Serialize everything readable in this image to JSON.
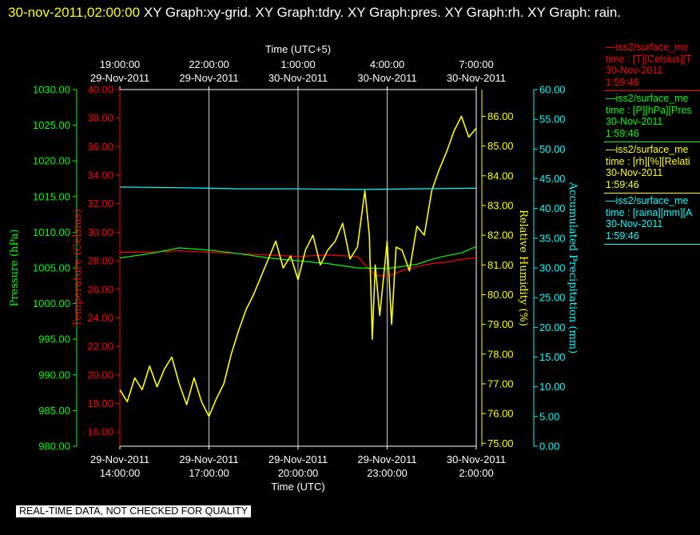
{
  "header": {
    "timestamp": "30-nov-2011,02:00:00",
    "title": " XY Graph:xy-grid.  XY Graph:tdry.  XY Graph:pres.  XY Graph:rh.  XY Graph: rain."
  },
  "footer": {
    "notice": "REAL-TIME DATA, NOT CHECKED FOR QUALITY"
  },
  "legend": [
    {
      "name": "—iss2/surface_me",
      "var": "time : [T][Celsius][T",
      "date": "30-Nov-2011",
      "time": "1:59:46",
      "color": "#ff0000"
    },
    {
      "name": "—iss2/surface_me",
      "var": "time : [P][hPa][Pres",
      "date": "30-Nov-2011",
      "time": "1:59:46",
      "color": "#00ff00"
    },
    {
      "name": "—iss2/surface_me",
      "var": "time : [rh][%][Relati",
      "date": "30-Nov-2011",
      "time": "1:59:46",
      "color": "#ffff00"
    },
    {
      "name": "—iss2/surface_me",
      "var": "time : [raina][mm][A",
      "date": "30-Nov-2011",
      "time": "1:59:46",
      "color": "#00ffff"
    }
  ],
  "chart_data": {
    "type": "line",
    "xlabel_bottom": "Time (UTC)",
    "xlabel_top": "Time (UTC+5)",
    "x_ticks_bottom": [
      {
        "line1": "29-Nov-2011",
        "line2": "14:00:00"
      },
      {
        "line1": "29-Nov-2011",
        "line2": "17:00:00"
      },
      {
        "line1": "29-Nov-2011",
        "line2": "20:00:00"
      },
      {
        "line1": "29-Nov-2011",
        "line2": "23:00:00"
      },
      {
        "line1": "30-Nov-2011",
        "line2": "2:00:00"
      }
    ],
    "x_ticks_top": [
      {
        "line1": "19:00:00",
        "line2": "29-Nov-2011"
      },
      {
        "line1": "22:00:00",
        "line2": "29-Nov-2011"
      },
      {
        "line1": "1:00:00",
        "line2": "30-Nov-2011"
      },
      {
        "line1": "4:00:00",
        "line2": "30-Nov-2011"
      },
      {
        "line1": "7:00:00",
        "line2": "30-Nov-2011"
      }
    ],
    "x_range_hours_utc": [
      14,
      26
    ],
    "grid": true,
    "axes": {
      "pressure": {
        "label": "Pressure (hPa)",
        "color": "#00ff00",
        "min": 980,
        "max": 1030,
        "ticks": [
          "980.00",
          "985.00",
          "990.00",
          "995.00",
          "1000.00",
          "1005.00",
          "1010.00",
          "1015.00",
          "1020.00",
          "1025.00",
          "1030.00"
        ]
      },
      "temperature": {
        "label": "Temperature (Celsius)",
        "color": "#ff0000",
        "min": 15,
        "max": 40,
        "ticks": [
          "16.00",
          "18.00",
          "20.00",
          "22.00",
          "24.00",
          "26.00",
          "28.00",
          "30.00",
          "32.00",
          "34.00",
          "36.00",
          "38.00",
          "40.00"
        ]
      },
      "humidity": {
        "label": "Relative Humidity (%)",
        "color": "#ffff00",
        "min": 74.9,
        "max": 86.9,
        "ticks": [
          "75.00",
          "76.00",
          "77.00",
          "78.00",
          "79.00",
          "80.00",
          "81.00",
          "82.00",
          "83.00",
          "84.00",
          "85.00",
          "86.00"
        ]
      },
      "precip": {
        "label": "Accumulated Precipitation (mm)",
        "color": "#00ffff",
        "min": 0,
        "max": 60,
        "ticks": [
          "0.00",
          "5.00",
          "10.00",
          "15.00",
          "20.00",
          "25.00",
          "30.00",
          "35.00",
          "40.00",
          "45.00",
          "50.00",
          "55.00",
          "60.00"
        ]
      }
    },
    "series": [
      {
        "name": "T",
        "axis": "temperature",
        "color": "#ff0000",
        "x": [
          14.0,
          15.0,
          16.0,
          17.0,
          18.0,
          19.0,
          20.0,
          21.0,
          22.0,
          22.3,
          22.6,
          23.0,
          23.5,
          24.0,
          24.5,
          25.0,
          25.5,
          26.0
        ],
        "y": [
          28.6,
          28.6,
          28.7,
          28.6,
          28.5,
          28.4,
          28.3,
          28.4,
          28.3,
          27.6,
          27.0,
          26.9,
          27.3,
          27.6,
          27.8,
          27.9,
          28.1,
          28.2
        ]
      },
      {
        "name": "P",
        "axis": "pressure",
        "color": "#00ff00",
        "x": [
          14.0,
          15.0,
          16.0,
          17.0,
          18.0,
          19.0,
          20.0,
          21.0,
          22.0,
          23.0,
          24.0,
          24.5,
          25.0,
          25.5,
          26.0
        ],
        "y": [
          1006.4,
          1007.0,
          1007.8,
          1007.5,
          1007.0,
          1006.4,
          1006.0,
          1005.6,
          1005.0,
          1004.9,
          1005.5,
          1006.2,
          1006.7,
          1007.1,
          1008.0
        ]
      },
      {
        "name": "rh",
        "axis": "humidity",
        "color": "#ffff00",
        "x": [
          14.0,
          14.25,
          14.5,
          14.75,
          15.0,
          15.25,
          15.5,
          15.75,
          16.0,
          16.25,
          16.5,
          16.75,
          17.0,
          17.25,
          17.5,
          17.75,
          18.0,
          18.25,
          18.5,
          18.75,
          19.0,
          19.25,
          19.5,
          19.75,
          20.0,
          20.25,
          20.5,
          20.75,
          21.0,
          21.25,
          21.5,
          21.75,
          22.0,
          22.25,
          22.4,
          22.5,
          22.6,
          22.75,
          22.9,
          23.0,
          23.15,
          23.3,
          23.5,
          23.75,
          24.0,
          24.25,
          24.5,
          24.75,
          25.0,
          25.25,
          25.5,
          25.75,
          26.0
        ],
        "y": [
          76.8,
          76.4,
          77.2,
          76.8,
          77.6,
          76.9,
          77.5,
          77.9,
          77.0,
          76.3,
          77.2,
          76.4,
          75.9,
          76.5,
          77.0,
          78.0,
          78.8,
          79.5,
          80.0,
          80.6,
          81.2,
          81.8,
          80.9,
          81.3,
          80.5,
          81.5,
          82.0,
          81.0,
          81.5,
          81.8,
          82.4,
          81.2,
          81.6,
          83.5,
          82.0,
          78.5,
          81.0,
          79.3,
          80.8,
          81.8,
          79.0,
          81.6,
          81.5,
          80.8,
          82.3,
          82.0,
          83.5,
          84.2,
          84.8,
          85.5,
          86.0,
          85.3,
          85.6
        ]
      },
      {
        "name": "raina",
        "axis": "precip",
        "color": "#00ffff",
        "x": [
          14.0,
          16.0,
          18.0,
          20.0,
          22.0,
          24.0,
          26.0
        ],
        "y": [
          43.6,
          43.5,
          43.3,
          43.3,
          43.2,
          43.3,
          43.4
        ]
      }
    ]
  }
}
